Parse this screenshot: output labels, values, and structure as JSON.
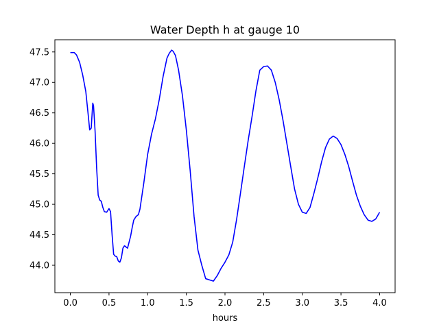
{
  "chart_data": {
    "type": "line",
    "title": "Water Depth h at gauge 10",
    "xlabel": "hours",
    "ylabel": "",
    "xlim": [
      -0.2,
      4.2
    ],
    "ylim": [
      43.55,
      47.7
    ],
    "xticks": [
      0.0,
      0.5,
      1.0,
      1.5,
      2.0,
      2.5,
      3.0,
      3.5,
      4.0
    ],
    "xtick_labels": [
      "0.0",
      "0.5",
      "1.0",
      "1.5",
      "2.0",
      "2.5",
      "3.0",
      "3.5",
      "4.0"
    ],
    "yticks": [
      44.0,
      44.5,
      45.0,
      45.5,
      46.0,
      46.5,
      47.0,
      47.5
    ],
    "ytick_labels": [
      "44.0",
      "44.5",
      "45.0",
      "45.5",
      "46.0",
      "46.5",
      "47.0",
      "47.5"
    ],
    "grid": false,
    "legend": "none",
    "series": [
      {
        "color": "#0000ff",
        "x": [
          0.0,
          0.05,
          0.08,
          0.12,
          0.16,
          0.2,
          0.23,
          0.25,
          0.27,
          0.29,
          0.3,
          0.32,
          0.34,
          0.36,
          0.38,
          0.4,
          0.42,
          0.44,
          0.47,
          0.5,
          0.52,
          0.54,
          0.56,
          0.58,
          0.6,
          0.62,
          0.64,
          0.66,
          0.68,
          0.7,
          0.72,
          0.74,
          0.76,
          0.78,
          0.8,
          0.82,
          0.85,
          0.88,
          0.9,
          0.95,
          1.0,
          1.05,
          1.1,
          1.15,
          1.2,
          1.25,
          1.28,
          1.31,
          1.33,
          1.36,
          1.4,
          1.45,
          1.5,
          1.55,
          1.6,
          1.65,
          1.7,
          1.75,
          1.8,
          1.85,
          1.9,
          1.95,
          2.0,
          2.05,
          2.1,
          2.15,
          2.2,
          2.25,
          2.3,
          2.35,
          2.4,
          2.45,
          2.5,
          2.55,
          2.6,
          2.65,
          2.7,
          2.75,
          2.8,
          2.85,
          2.9,
          2.95,
          3.0,
          3.05,
          3.1,
          3.15,
          3.2,
          3.25,
          3.3,
          3.35,
          3.4,
          3.45,
          3.5,
          3.55,
          3.6,
          3.65,
          3.7,
          3.75,
          3.8,
          3.85,
          3.9,
          3.95,
          4.0
        ],
        "y": [
          47.49,
          47.49,
          47.45,
          47.33,
          47.12,
          46.85,
          46.48,
          46.22,
          46.25,
          46.66,
          46.62,
          46.2,
          45.6,
          45.15,
          45.07,
          45.05,
          44.95,
          44.88,
          44.87,
          44.93,
          44.88,
          44.5,
          44.18,
          44.15,
          44.14,
          44.07,
          44.05,
          44.12,
          44.28,
          44.32,
          44.3,
          44.28,
          44.38,
          44.48,
          44.62,
          44.74,
          44.8,
          44.83,
          44.92,
          45.35,
          45.82,
          46.15,
          46.4,
          46.72,
          47.1,
          47.4,
          47.48,
          47.53,
          47.51,
          47.44,
          47.2,
          46.78,
          46.22,
          45.55,
          44.8,
          44.25,
          44.0,
          43.78,
          43.76,
          43.74,
          43.83,
          43.95,
          44.05,
          44.17,
          44.38,
          44.75,
          45.18,
          45.62,
          46.05,
          46.44,
          46.86,
          47.2,
          47.26,
          47.27,
          47.2,
          47.0,
          46.72,
          46.38,
          46.0,
          45.62,
          45.25,
          45.0,
          44.87,
          44.85,
          44.95,
          45.18,
          45.43,
          45.7,
          45.93,
          46.07,
          46.12,
          46.08,
          45.98,
          45.82,
          45.62,
          45.38,
          45.15,
          44.97,
          44.83,
          44.74,
          44.72,
          44.76,
          44.87
        ]
      }
    ]
  }
}
